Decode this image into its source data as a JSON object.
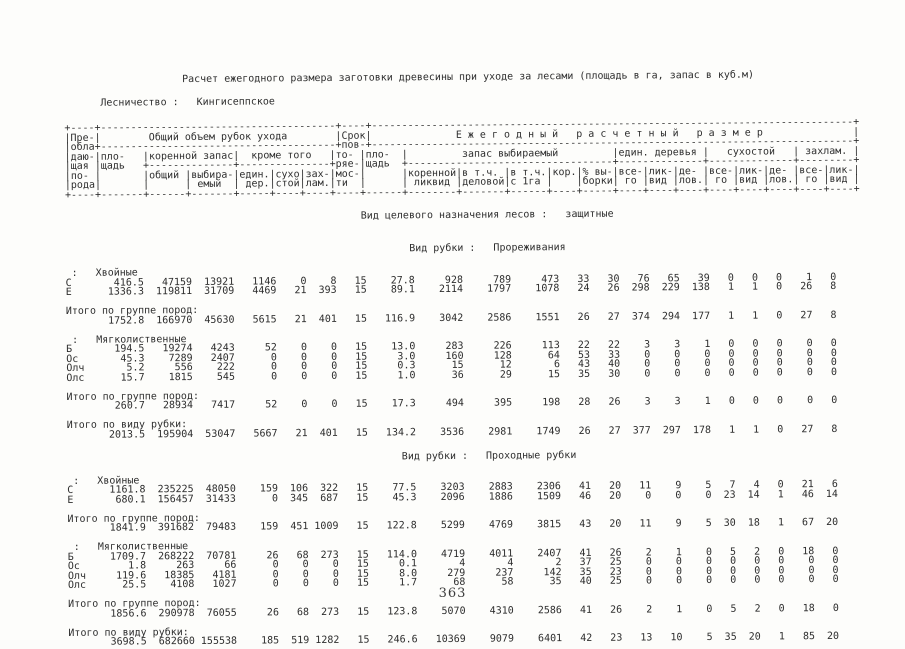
{
  "doc": {
    "title": "Расчет ежегодного размера заготовки древесины при уходе за лесами (площадь в га, запас в куб.м)",
    "forestry_label": "Лесничество :",
    "forestry_name": "Кингисеппское",
    "purpose_label": "Вид целевого назначения лесов :",
    "purpose_value": "защитные",
    "cutting_label": "Вид рубки :",
    "page_number": "363"
  },
  "table": {
    "header_lines": [
      "+----+---------------------------------------+----+--------------------------------------------------------------------------------+",
      "|Пре-|        Общий объем рубок ухода        |Срок|              Е ж е г о д н ы й   р а с ч е т н ы й   р а з м е р               |",
      "|обла+---------------------------------------+пов-+--------------------------------------------------------------------------------+",
      "|даю-|пло-   |коренной запас|  кроме того   |то- |пло-  |         запас выбираемый         |един. деревья |   сухостой   | захлам. |",
      "|щая |щадь   +--------------+---------------+ряе-|щадь  +----------------------------------+--------------+--------------+---------+",
      "|по- |       |общий |выбира-|един.|сухо|зах-|мос-|      |коренной|в т.ч. |в т.ч.|кор.|% вы-|все-|лик-|де- |все-|лик-|де- |все-|лик-|",
      "|рода|       |      | емый  | дер.|стой|лам.|ти  |      | ликвид |деловой|с 1га |    |борки| го |вид |лов.| го |вид |лов.| го |вид |",
      "+----+-------+------+-------+-----+----+----+----+------+--------+-------+------+----+-----+----+----+----+----+----+----+----+----+"
    ]
  },
  "sections": [
    {
      "cutting_type": "Прореживания",
      "groups": [
        {
          "label": " :   Хвойные",
          "rows": [
            {
              "species": "С",
              "values": [
                "416.5",
                "47159",
                "13921",
                "1146",
                "0",
                "8",
                "15",
                "27.8",
                "928",
                "789",
                "473",
                "33",
                "30",
                "76",
                "65",
                "39",
                "0",
                "0",
                "0",
                "1",
                "0"
              ]
            },
            {
              "species": "Е",
              "values": [
                "1336.3",
                "119811",
                "31709",
                "4469",
                "21",
                "393",
                "15",
                "89.1",
                "2114",
                "1797",
                "1078",
                "24",
                "26",
                "298",
                "229",
                "138",
                "1",
                "1",
                "0",
                "26",
                "8"
              ]
            }
          ],
          "total_label": "Итого по группе пород:",
          "total_values": [
            "1752.8",
            "166970",
            "45630",
            "5615",
            "21",
            "401",
            "15",
            "116.9",
            "3042",
            "2586",
            "1551",
            "26",
            "27",
            "374",
            "294",
            "177",
            "1",
            "1",
            "0",
            "27",
            "8"
          ]
        },
        {
          "label": " :   Мягколиственные",
          "rows": [
            {
              "species": "Б",
              "values": [
                "194.5",
                "19274",
                "4243",
                "52",
                "0",
                "0",
                "15",
                "13.0",
                "283",
                "226",
                "113",
                "22",
                "22",
                "3",
                "3",
                "1",
                "0",
                "0",
                "0",
                "0",
                "0"
              ]
            },
            {
              "species": "Ос",
              "values": [
                "45.3",
                "7289",
                "2407",
                "0",
                "0",
                "0",
                "15",
                "3.0",
                "160",
                "128",
                "64",
                "53",
                "33",
                "0",
                "0",
                "0",
                "0",
                "0",
                "0",
                "0",
                "0"
              ]
            },
            {
              "species": "Олч",
              "values": [
                "5.2",
                "556",
                "222",
                "0",
                "0",
                "0",
                "15",
                "0.3",
                "15",
                "12",
                "6",
                "43",
                "40",
                "0",
                "0",
                "0",
                "0",
                "0",
                "0",
                "0",
                "0"
              ]
            },
            {
              "species": "Олс",
              "values": [
                "15.7",
                "1815",
                "545",
                "0",
                "0",
                "0",
                "15",
                "1.0",
                "36",
                "29",
                "15",
                "35",
                "30",
                "0",
                "0",
                "0",
                "0",
                "0",
                "0",
                "0",
                "0"
              ]
            }
          ],
          "total_label": "Итого по группе пород:",
          "total_values": [
            "260.7",
            "28934",
            "7417",
            "52",
            "0",
            "0",
            "15",
            "17.3",
            "494",
            "395",
            "198",
            "28",
            "26",
            "3",
            "3",
            "1",
            "0",
            "0",
            "0",
            "0",
            "0"
          ]
        }
      ],
      "type_total_label": "Итого по виду рубки:",
      "type_total_values": [
        "2013.5",
        "195904",
        "53047",
        "5667",
        "21",
        "401",
        "15",
        "134.2",
        "3536",
        "2981",
        "1749",
        "26",
        "27",
        "377",
        "297",
        "178",
        "1",
        "1",
        "0",
        "27",
        "8"
      ]
    },
    {
      "cutting_type": "Проходные рубки",
      "groups": [
        {
          "label": " :   Хвойные",
          "rows": [
            {
              "species": "С",
              "values": [
                "1161.8",
                "235225",
                "48050",
                "159",
                "106",
                "322",
                "15",
                "77.5",
                "3203",
                "2883",
                "2306",
                "41",
                "20",
                "11",
                "9",
                "5",
                "7",
                "4",
                "0",
                "21",
                "6"
              ]
            },
            {
              "species": "Е",
              "values": [
                "680.1",
                "156457",
                "31433",
                "0",
                "345",
                "687",
                "15",
                "45.3",
                "2096",
                "1886",
                "1509",
                "46",
                "20",
                "0",
                "0",
                "0",
                "23",
                "14",
                "1",
                "46",
                "14"
              ]
            }
          ],
          "total_label": "Итого по группе пород:",
          "total_values": [
            "1841.9",
            "391682",
            "79483",
            "159",
            "451",
            "1009",
            "15",
            "122.8",
            "5299",
            "4769",
            "3815",
            "43",
            "20",
            "11",
            "9",
            "5",
            "30",
            "18",
            "1",
            "67",
            "20"
          ]
        },
        {
          "label": " :   Мягколиственные",
          "rows": [
            {
              "species": "Б",
              "values": [
                "1709.7",
                "268222",
                "70781",
                "26",
                "68",
                "273",
                "15",
                "114.0",
                "4719",
                "4011",
                "2407",
                "41",
                "26",
                "2",
                "1",
                "0",
                "5",
                "2",
                "0",
                "18",
                "0"
              ]
            },
            {
              "species": "Ос",
              "values": [
                "1.8",
                "263",
                "66",
                "0",
                "0",
                "0",
                "15",
                "0.1",
                "4",
                "4",
                "2",
                "37",
                "25",
                "0",
                "0",
                "0",
                "0",
                "0",
                "0",
                "0",
                "0"
              ]
            },
            {
              "species": "Олч",
              "values": [
                "119.6",
                "18385",
                "4181",
                "0",
                "0",
                "0",
                "15",
                "8.0",
                "279",
                "237",
                "142",
                "35",
                "23",
                "0",
                "0",
                "0",
                "0",
                "0",
                "0",
                "0",
                "0"
              ]
            },
            {
              "species": "Олс",
              "values": [
                "25.5",
                "4108",
                "1027",
                "0",
                "0",
                "0",
                "15",
                "1.7",
                "68",
                "58",
                "35",
                "40",
                "25",
                "0",
                "0",
                "0",
                "0",
                "0",
                "0",
                "0",
                "0"
              ]
            }
          ],
          "total_label": "Итого по группе пород:",
          "total_values": [
            "1856.6",
            "290978",
            "76055",
            "26",
            "68",
            "273",
            "15",
            "123.8",
            "5070",
            "4310",
            "2586",
            "41",
            "26",
            "2",
            "1",
            "0",
            "5",
            "2",
            "0",
            "18",
            "0"
          ]
        }
      ],
      "type_total_label": "Итого по виду рубки:",
      "type_total_values": [
        "3698.5",
        "682660",
        "155538",
        "185",
        "519",
        "1282",
        "15",
        "246.6",
        "10369",
        "9079",
        "6401",
        "42",
        "23",
        "13",
        "10",
        "5",
        "35",
        "20",
        "1",
        "85",
        "20"
      ]
    }
  ]
}
